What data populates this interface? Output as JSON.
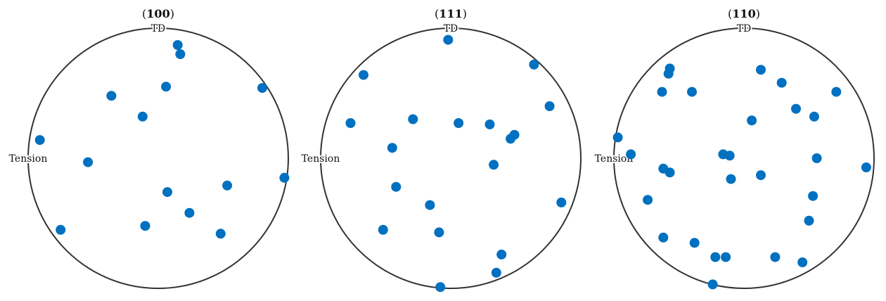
{
  "chart_data": [
    {
      "type": "scatter",
      "title_open": "(",
      "title_bold": "100",
      "title_close": ")",
      "top_label": "TD",
      "left_label": "Tension",
      "xlim": [
        -1,
        1
      ],
      "ylim": [
        -1,
        1
      ],
      "grid": false,
      "marker_color": "#0070C0",
      "points": [
        {
          "x": 0.15,
          "y": 0.87
        },
        {
          "x": 0.17,
          "y": 0.8
        },
        {
          "x": 0.06,
          "y": 0.55
        },
        {
          "x": -0.36,
          "y": 0.48
        },
        {
          "x": 0.8,
          "y": 0.54
        },
        {
          "x": -0.12,
          "y": 0.32
        },
        {
          "x": -0.91,
          "y": 0.14
        },
        {
          "x": -0.54,
          "y": -0.03
        },
        {
          "x": 0.07,
          "y": -0.26
        },
        {
          "x": 0.53,
          "y": -0.21
        },
        {
          "x": 0.97,
          "y": -0.15
        },
        {
          "x": 0.24,
          "y": -0.42
        },
        {
          "x": -0.75,
          "y": -0.55
        },
        {
          "x": -0.1,
          "y": -0.52
        },
        {
          "x": 0.48,
          "y": -0.58
        }
      ]
    },
    {
      "type": "scatter",
      "title_open": "(",
      "title_bold": "111",
      "title_close": ")",
      "top_label": "TD",
      "left_label": "Tension",
      "xlim": [
        -1,
        1
      ],
      "ylim": [
        -1,
        1
      ],
      "grid": false,
      "marker_color": "#0070C0",
      "points": [
        {
          "x": -0.02,
          "y": 0.91
        },
        {
          "x": 0.64,
          "y": 0.72
        },
        {
          "x": -0.67,
          "y": 0.64
        },
        {
          "x": 0.76,
          "y": 0.4
        },
        {
          "x": -0.77,
          "y": 0.27
        },
        {
          "x": -0.29,
          "y": 0.3
        },
        {
          "x": 0.06,
          "y": 0.27
        },
        {
          "x": 0.3,
          "y": 0.26
        },
        {
          "x": 0.49,
          "y": 0.18
        },
        {
          "x": 0.46,
          "y": 0.15
        },
        {
          "x": -0.45,
          "y": 0.08
        },
        {
          "x": 0.33,
          "y": -0.05
        },
        {
          "x": -0.42,
          "y": -0.22
        },
        {
          "x": -0.16,
          "y": -0.36
        },
        {
          "x": 0.85,
          "y": -0.34
        },
        {
          "x": -0.52,
          "y": -0.55
        },
        {
          "x": -0.09,
          "y": -0.57
        },
        {
          "x": 0.39,
          "y": -0.74
        },
        {
          "x": 0.35,
          "y": -0.88
        },
        {
          "x": -0.08,
          "y": -0.99
        }
      ]
    },
    {
      "type": "scatter",
      "title_open": "(",
      "title_bold": "110",
      "title_close": ")",
      "top_label": "TD",
      "left_label": "Tension",
      "xlim": [
        -1,
        1
      ],
      "ylim": [
        -1,
        1
      ],
      "grid": false,
      "marker_color": "#0070C0",
      "points": [
        {
          "x": -0.57,
          "y": 0.69
        },
        {
          "x": -0.58,
          "y": 0.65
        },
        {
          "x": 0.13,
          "y": 0.68
        },
        {
          "x": 0.29,
          "y": 0.58
        },
        {
          "x": -0.63,
          "y": 0.51
        },
        {
          "x": -0.4,
          "y": 0.51
        },
        {
          "x": 0.71,
          "y": 0.51
        },
        {
          "x": 0.4,
          "y": 0.38
        },
        {
          "x": 0.54,
          "y": 0.32
        },
        {
          "x": 0.06,
          "y": 0.29
        },
        {
          "x": -0.97,
          "y": 0.16
        },
        {
          "x": -0.87,
          "y": 0.03
        },
        {
          "x": -0.16,
          "y": 0.03
        },
        {
          "x": -0.11,
          "y": 0.02
        },
        {
          "x": 0.56,
          "y": 0.0
        },
        {
          "x": 0.94,
          "y": -0.07
        },
        {
          "x": -0.62,
          "y": -0.08
        },
        {
          "x": -0.57,
          "y": -0.11
        },
        {
          "x": -0.1,
          "y": -0.16
        },
        {
          "x": 0.13,
          "y": -0.13
        },
        {
          "x": -0.74,
          "y": -0.32
        },
        {
          "x": 0.53,
          "y": -0.29
        },
        {
          "x": 0.5,
          "y": -0.48
        },
        {
          "x": -0.62,
          "y": -0.61
        },
        {
          "x": -0.38,
          "y": -0.65
        },
        {
          "x": -0.22,
          "y": -0.76
        },
        {
          "x": -0.14,
          "y": -0.76
        },
        {
          "x": 0.24,
          "y": -0.76
        },
        {
          "x": 0.45,
          "y": -0.8
        },
        {
          "x": -0.24,
          "y": -0.97
        }
      ]
    }
  ]
}
